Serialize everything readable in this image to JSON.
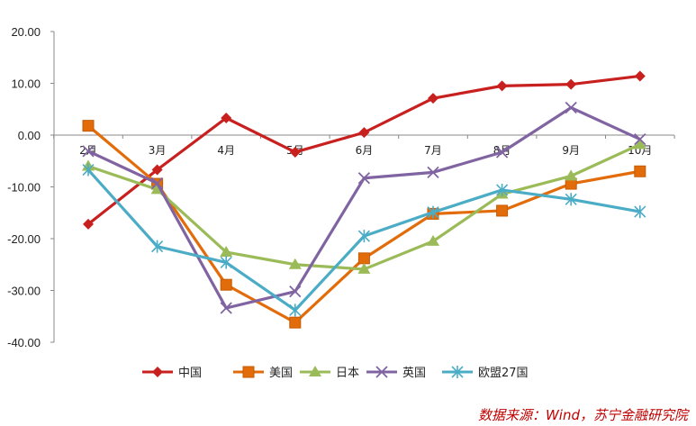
{
  "chart_data": {
    "type": "line",
    "categories": [
      "2月",
      "3月",
      "4月",
      "5月",
      "6月",
      "7月",
      "8月",
      "9月",
      "10月"
    ],
    "ylim": [
      -40,
      20
    ],
    "yticks": [
      20,
      10,
      0,
      -10,
      -20,
      -30,
      -40
    ],
    "ytick_labels": [
      "20.00",
      "10.00",
      "0.00",
      "-10.00",
      "-20.00",
      "-30.00",
      "-40.00"
    ],
    "grid": false,
    "legend_position": "bottom",
    "series": [
      {
        "name": "中国",
        "color": "#c8201f",
        "marker": "diamond",
        "values": [
          -17.2,
          -6.7,
          3.3,
          -3.3,
          0.5,
          7.1,
          9.5,
          9.8,
          11.4
        ]
      },
      {
        "name": "美国",
        "color": "#e36c0a",
        "marker": "square",
        "values": [
          1.8,
          -9.4,
          -28.9,
          -36.2,
          -23.8,
          -15.2,
          -14.6,
          -9.4,
          -7.0
        ]
      },
      {
        "name": "日本",
        "color": "#9bbb59",
        "marker": "triangle",
        "values": [
          -6.0,
          -10.5,
          -22.6,
          -25.0,
          -25.9,
          -20.5,
          -11.4,
          -7.9,
          -1.8
        ]
      },
      {
        "name": "英国",
        "color": "#8064a2",
        "marker": "x",
        "values": [
          -3.1,
          -9.3,
          -33.4,
          -30.2,
          -8.3,
          -7.2,
          -3.3,
          5.3,
          -0.8
        ]
      },
      {
        "name": "欧盟27国",
        "color": "#4bacc6",
        "marker": "star",
        "values": [
          -6.7,
          -21.5,
          -24.6,
          -33.8,
          -19.5,
          -14.9,
          -10.6,
          -12.4,
          -14.8
        ]
      }
    ],
    "source": "数据来源：Wind，苏宁金融研究院"
  }
}
